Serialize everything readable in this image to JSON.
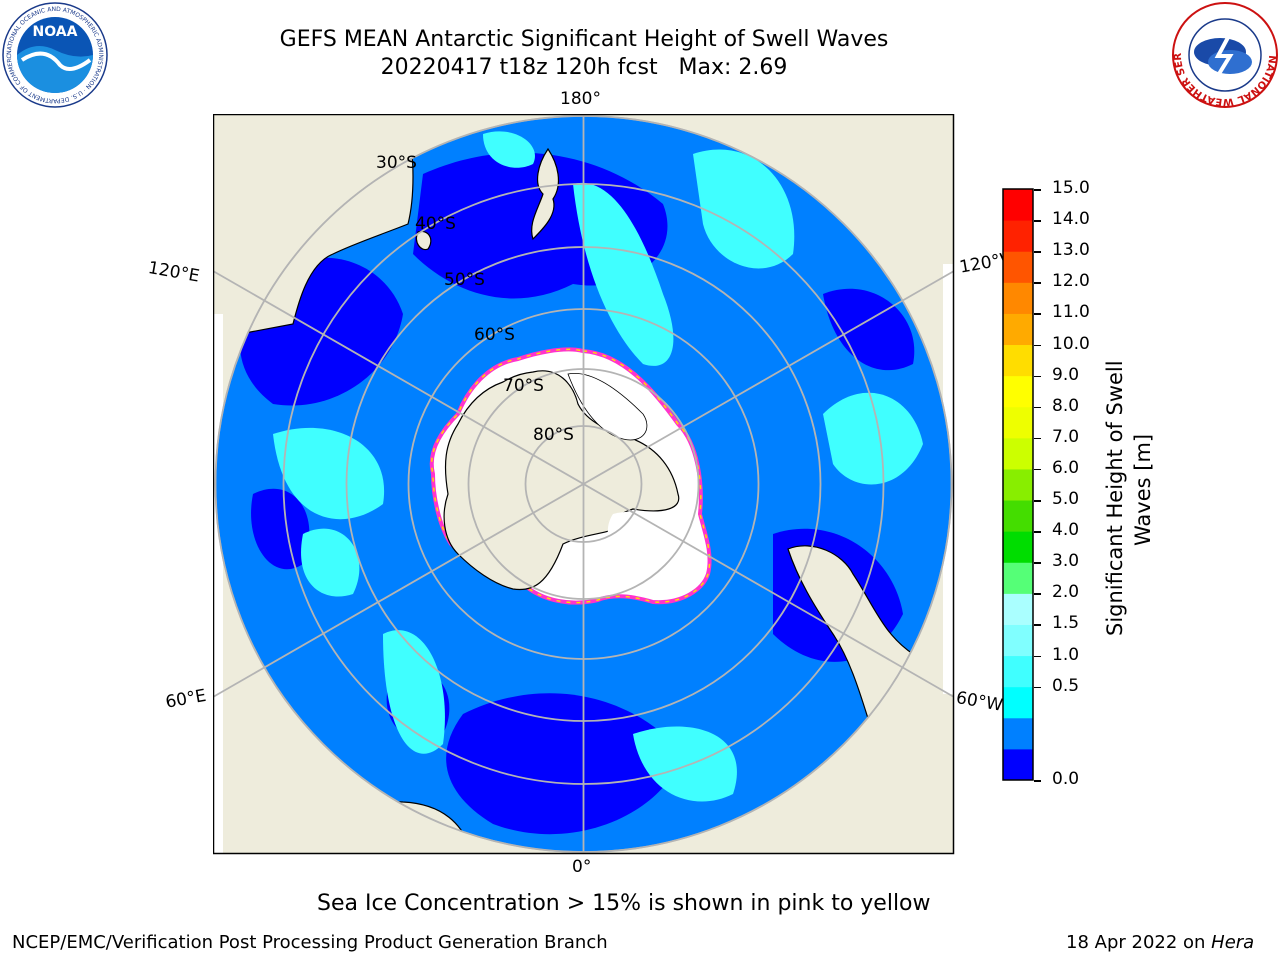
{
  "title": {
    "line1": "GEFS MEAN Antarctic Significant Height of Swell Waves",
    "line2": "20220417 t18z 120h fcst   Max: 2.69"
  },
  "logos": {
    "left": "NOAA",
    "left_ring": "NATIONAL OCEANIC AND ATMOSPHERIC ADMINISTRATION · U.S. DEPARTMENT OF COMMERCE",
    "right_ring": "NATIONAL WEATHER SERVICE"
  },
  "map": {
    "longitude_labels": {
      "top": "180°",
      "bottom": "0°",
      "upper_left": "120°E",
      "upper_right": "120°W",
      "lower_left": "60°E",
      "lower_right": "60°W"
    },
    "latitude_labels": [
      "30°S",
      "40°S",
      "50°S",
      "60°S",
      "70°S",
      "80°S"
    ],
    "colors": {
      "ocean_0_0.5": "#0000ff",
      "ocean_0.5_1": "#0080ff",
      "ocean_1_1.5": "#00ffff",
      "ocean_1.5_2": "#40ffff",
      "land": "#eeecdc",
      "ice": "#ffffff",
      "ice_edge": "#ff33cc"
    }
  },
  "colorbar": {
    "ticks": [
      "15.0",
      "14.0",
      "13.0",
      "12.0",
      "11.0",
      "10.0",
      "9.0",
      "8.0",
      "7.0",
      "6.0",
      "5.0",
      "4.0",
      "3.0",
      "2.0",
      "1.5",
      "1.0",
      "0.5",
      "0.0"
    ],
    "colors": [
      "#0000ff",
      "#0080ff",
      "#00ffff",
      "#40ffff",
      "#80ffff",
      "#aaffff",
      "#55ff77",
      "#00dd00",
      "#44dd00",
      "#88ee00",
      "#ccff00",
      "#eeff00",
      "#ffff00",
      "#ffdd00",
      "#ffaa00",
      "#ff8800",
      "#ff5500",
      "#ff2200",
      "#ff0000"
    ],
    "label_line1": "Significant Height of Swell",
    "label_line2": "Waves [m]"
  },
  "note": "Sea Ice Concentration > 15% is shown in pink to yellow",
  "footer": {
    "left": "NCEP/EMC/Verification Post Processing Product Generation Branch",
    "date": "18 Apr 2022 on ",
    "machine": "Hera"
  }
}
